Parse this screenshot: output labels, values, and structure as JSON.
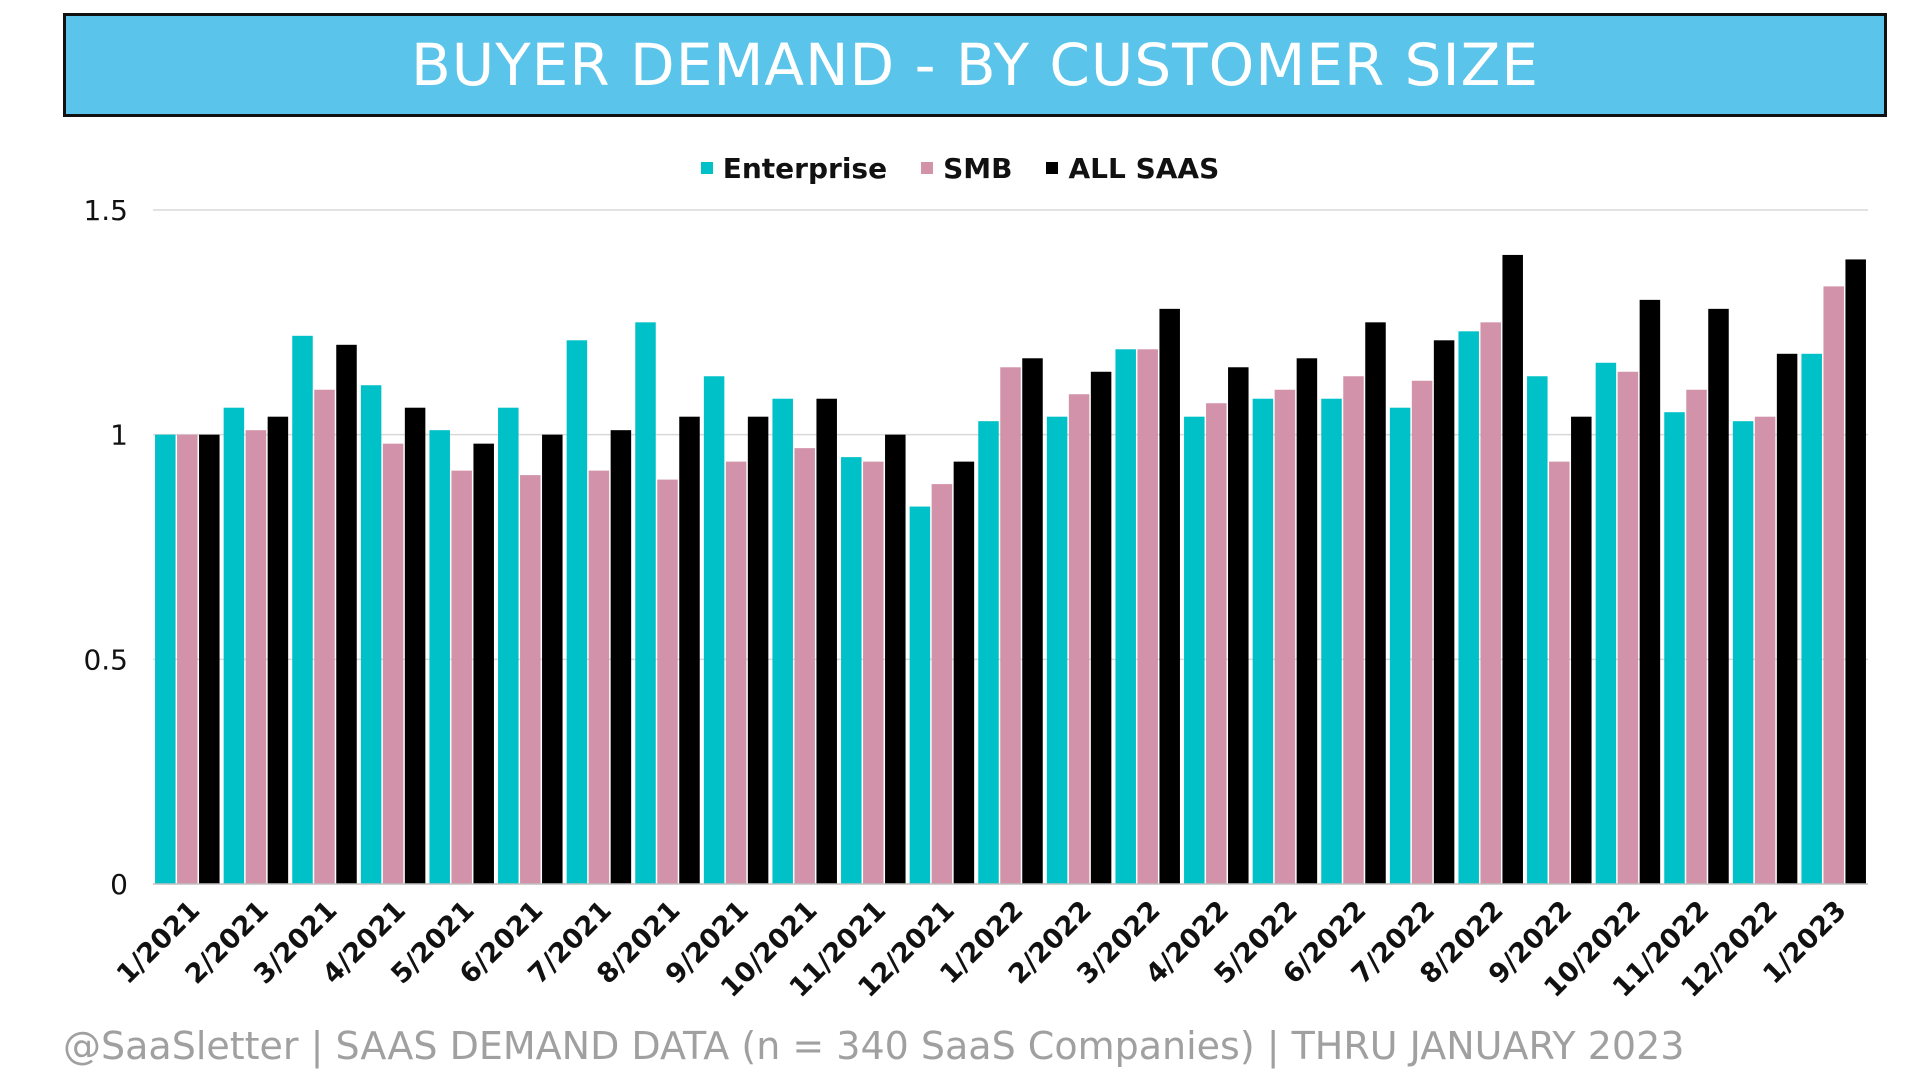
{
  "header": {
    "title": "BUYER DEMAND - BY CUSTOMER SIZE"
  },
  "footer": {
    "text": "@SaaSletter | SAAS DEMAND DATA (n = 340 SaaS Companies) | THRU JANUARY 2023"
  },
  "colors": {
    "banner": "#5bc4ea",
    "enterprise": "#00c0c8",
    "smb": "#d293aa",
    "all_saas": "#000000",
    "gridline": "#d9d9d9",
    "footer_text": "#a0a0a0"
  },
  "chart_data": {
    "type": "bar",
    "title": "BUYER DEMAND - BY CUSTOMER SIZE",
    "xlabel": "",
    "ylabel": "",
    "ylim": [
      0,
      1.5
    ],
    "y_ticks": [
      "0",
      "0.5",
      "1",
      "1.5"
    ],
    "grid": true,
    "legend_position": "top-center",
    "categories": [
      "1/2021",
      "2/2021",
      "3/2021",
      "4/2021",
      "5/2021",
      "6/2021",
      "7/2021",
      "8/2021",
      "9/2021",
      "10/2021",
      "11/2021",
      "12/2021",
      "1/2022",
      "2/2022",
      "3/2022",
      "4/2022",
      "5/2022",
      "6/2022",
      "7/2022",
      "8/2022",
      "9/2022",
      "10/2022",
      "11/2022",
      "12/2022",
      "1/2023"
    ],
    "series": [
      {
        "name": "Enterprise",
        "color": "#00c0c8",
        "values": [
          1.0,
          1.06,
          1.22,
          1.11,
          1.01,
          1.06,
          1.21,
          1.25,
          1.13,
          1.08,
          0.95,
          0.84,
          1.03,
          1.04,
          1.19,
          1.04,
          1.08,
          1.08,
          1.06,
          1.23,
          1.13,
          1.16,
          1.05,
          1.03,
          1.18
        ]
      },
      {
        "name": "SMB",
        "color": "#d293aa",
        "values": [
          1.0,
          1.01,
          1.1,
          0.98,
          0.92,
          0.91,
          0.92,
          0.9,
          0.94,
          0.97,
          0.94,
          0.89,
          1.15,
          1.09,
          1.19,
          1.07,
          1.1,
          1.13,
          1.12,
          1.25,
          0.94,
          1.14,
          1.1,
          1.04,
          1.33
        ]
      },
      {
        "name": "ALL SAAS",
        "color": "#000000",
        "values": [
          1.0,
          1.04,
          1.2,
          1.06,
          0.98,
          1.0,
          1.01,
          1.04,
          1.04,
          1.08,
          1.0,
          0.94,
          1.17,
          1.14,
          1.28,
          1.15,
          1.17,
          1.25,
          1.21,
          1.4,
          1.04,
          1.3,
          1.28,
          1.18,
          1.39
        ]
      }
    ]
  }
}
